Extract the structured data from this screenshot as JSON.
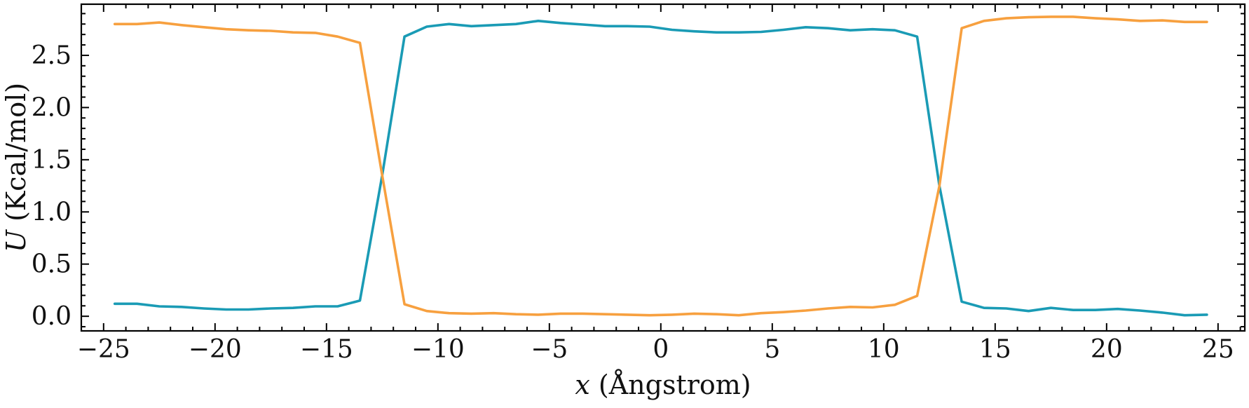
{
  "chart_data": {
    "type": "line",
    "xlabel": {
      "var": "x",
      "rest": " (Ångstrom)"
    },
    "ylabel": {
      "var": "U",
      "rest": " (Kcal/mol)"
    },
    "xlim": [
      -26,
      26.2
    ],
    "ylim": [
      -0.14,
      2.99
    ],
    "xticks": [
      -25,
      -20,
      -15,
      -10,
      -5,
      0,
      5,
      10,
      15,
      20,
      25
    ],
    "xtick_labels": [
      "−25",
      "−20",
      "−15",
      "−10",
      "−5",
      "0",
      "5",
      "10",
      "15",
      "20",
      "25"
    ],
    "yticks": [
      0.0,
      0.5,
      1.0,
      1.5,
      2.0,
      2.5
    ],
    "ytick_labels": [
      "0.0",
      "0.5",
      "1.0",
      "1.5",
      "2.0",
      "2.5"
    ],
    "xminor_step": 1,
    "yminor_step": 0.1,
    "grid": false,
    "x": [
      -24.5,
      -23.5,
      -22.5,
      -21.5,
      -20.5,
      -19.5,
      -18.5,
      -17.5,
      -16.5,
      -15.5,
      -14.5,
      -13.5,
      -12.5,
      -11.5,
      -10.5,
      -9.5,
      -8.5,
      -7.5,
      -6.5,
      -5.5,
      -4.5,
      -3.5,
      -2.5,
      -1.5,
      -0.5,
      0.5,
      1.5,
      2.5,
      3.5,
      4.5,
      5.5,
      6.5,
      7.5,
      8.5,
      9.5,
      10.5,
      11.5,
      12.5,
      13.5,
      14.5,
      15.5,
      16.5,
      17.5,
      18.5,
      19.5,
      20.5,
      21.5,
      22.5,
      23.5,
      24.5
    ],
    "series": [
      {
        "color": "#1a9bb5",
        "values": [
          0.12,
          0.12,
          0.095,
          0.09,
          0.075,
          0.065,
          0.065,
          0.075,
          0.08,
          0.095,
          0.095,
          0.15,
          1.35,
          2.68,
          2.775,
          2.8,
          2.78,
          2.79,
          2.8,
          2.83,
          2.81,
          2.795,
          2.78,
          2.78,
          2.775,
          2.745,
          2.73,
          2.72,
          2.72,
          2.725,
          2.745,
          2.77,
          2.76,
          2.74,
          2.75,
          2.74,
          2.68,
          1.25,
          0.14,
          0.08,
          0.075,
          0.05,
          0.08,
          0.06,
          0.06,
          0.07,
          0.055,
          0.035,
          0.01,
          0.015
        ]
      },
      {
        "color": "#f7a03f",
        "values": [
          2.8,
          2.8,
          2.815,
          2.79,
          2.77,
          2.75,
          2.74,
          2.735,
          2.72,
          2.715,
          2.68,
          2.62,
          1.35,
          0.115,
          0.05,
          0.03,
          0.025,
          0.03,
          0.02,
          0.015,
          0.025,
          0.025,
          0.02,
          0.015,
          0.01,
          0.015,
          0.025,
          0.02,
          0.01,
          0.03,
          0.04,
          0.055,
          0.075,
          0.09,
          0.085,
          0.11,
          0.195,
          1.25,
          2.76,
          2.83,
          2.855,
          2.865,
          2.87,
          2.87,
          2.855,
          2.845,
          2.83,
          2.835,
          2.82,
          2.82
        ]
      }
    ]
  }
}
